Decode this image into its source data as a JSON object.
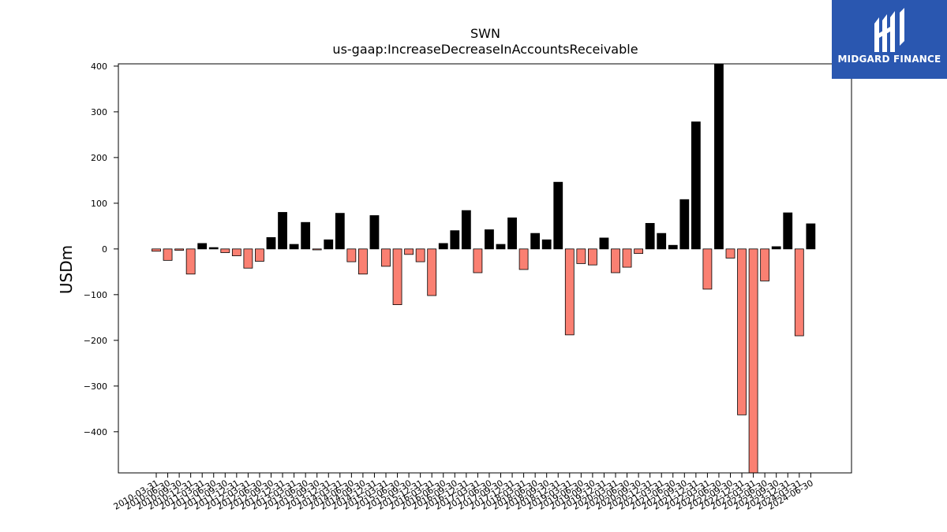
{
  "chart_data": {
    "type": "bar",
    "title": "SWN",
    "subtitle": "us-gaap:IncreaseDecreaseInAccountsReceivable",
    "xlabel": "",
    "ylabel": "USDm",
    "ylim": [
      -490,
      405
    ],
    "yticks": [
      400,
      300,
      200,
      100,
      0,
      -100,
      -200,
      -300,
      -400
    ],
    "ytick_labels": [
      "400",
      "300",
      "200",
      "100",
      "0",
      "−100",
      "−200",
      "−300",
      "−400"
    ],
    "grid": false,
    "colors": {
      "positive": "#000000",
      "negative": "#fa8072",
      "edge": "#000000"
    },
    "categories": [
      "2010-03-31",
      "2010-06-30",
      "2010-09-30",
      "2010-12-31",
      "2011-03-31",
      "2011-06-30",
      "2011-09-30",
      "2011-12-31",
      "2012-03-31",
      "2012-06-30",
      "2012-09-30",
      "2012-12-31",
      "2013-03-31",
      "2013-06-30",
      "2013-09-30",
      "2013-12-31",
      "2014-03-31",
      "2014-06-30",
      "2014-09-30",
      "2014-12-31",
      "2015-03-31",
      "2015-06-30",
      "2015-09-30",
      "2015-12-31",
      "2016-03-31",
      "2016-06-30",
      "2016-09-30",
      "2016-12-31",
      "2017-03-31",
      "2017-06-30",
      "2017-09-30",
      "2017-12-31",
      "2018-03-31",
      "2018-06-30",
      "2018-09-30",
      "2018-12-31",
      "2019-03-31",
      "2019-06-30",
      "2019-09-30",
      "2019-12-31",
      "2020-03-31",
      "2020-06-30",
      "2020-09-30",
      "2020-12-31",
      "2021-03-31",
      "2021-06-30",
      "2021-09-30",
      "2021-12-31",
      "2022-03-31",
      "2022-06-30",
      "2022-09-30",
      "2022-12-31",
      "2023-03-31",
      "2023-06-30",
      "2023-09-30",
      "2023-12-31",
      "2024-03-31",
      "2024-06-30"
    ],
    "values": [
      -5,
      -25,
      -3,
      -55,
      12,
      3,
      -8,
      -15,
      -42,
      -27,
      25,
      80,
      10,
      58,
      -2,
      20,
      78,
      -28,
      -55,
      73,
      -38,
      -122,
      -12,
      -28,
      -102,
      12,
      40,
      84,
      -52,
      42,
      10,
      68,
      -45,
      34,
      20,
      146,
      -188,
      -32,
      -35,
      24,
      -52,
      -40,
      -10,
      56,
      34,
      8,
      108,
      278,
      -88,
      405,
      -20,
      -363,
      -490,
      -70,
      5,
      79,
      -190,
      55
    ]
  },
  "logo": {
    "name": "MIDGARD FINANCE"
  }
}
